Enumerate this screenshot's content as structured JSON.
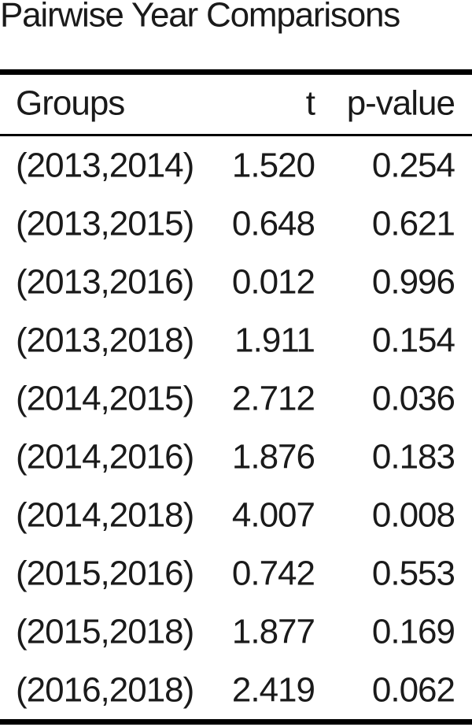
{
  "header": {
    "title": "Pairwise Year Comparisons"
  },
  "table": {
    "columns": [
      "Groups",
      "t",
      "p-value"
    ],
    "rows": [
      [
        "(2013,2014)",
        "1.520",
        "0.254"
      ],
      [
        "(2013,2015)",
        "0.648",
        "0.621"
      ],
      [
        "(2013,2016)",
        "0.012",
        "0.996"
      ],
      [
        "(2013,2018)",
        "1.911",
        "0.154"
      ],
      [
        "(2014,2015)",
        "2.712",
        "0.036"
      ],
      [
        "(2014,2016)",
        "1.876",
        "0.183"
      ],
      [
        "(2014,2018)",
        "4.007",
        "0.008"
      ],
      [
        "(2015,2016)",
        "0.742",
        "0.553"
      ],
      [
        "(2015,2018)",
        "1.877",
        "0.169"
      ],
      [
        "(2016,2018)",
        "2.419",
        "0.062"
      ]
    ]
  }
}
